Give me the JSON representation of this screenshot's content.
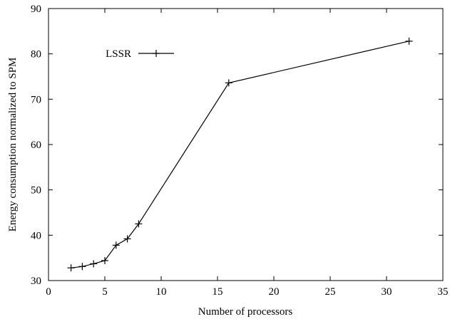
{
  "chart_data": {
    "type": "line",
    "title": "",
    "xlabel": "Number of processors",
    "ylabel": "Energy consumption normalized to SPM",
    "xlim": [
      0,
      35
    ],
    "ylim": [
      30,
      90
    ],
    "xticks": [
      "0",
      "5",
      "10",
      "15",
      "20",
      "25",
      "30",
      "35"
    ],
    "yticks": [
      "30",
      "40",
      "50",
      "60",
      "70",
      "80",
      "90"
    ],
    "grid": false,
    "legend_position": "top-left",
    "series": [
      {
        "name": "LSSR",
        "color": "#000000",
        "marker": "plus",
        "x": [
          2,
          3,
          4,
          5,
          6,
          7,
          8,
          16,
          32
        ],
        "y": [
          32.8,
          33.1,
          33.7,
          34.4,
          37.8,
          39.2,
          42.5,
          73.6,
          82.8
        ]
      }
    ]
  }
}
